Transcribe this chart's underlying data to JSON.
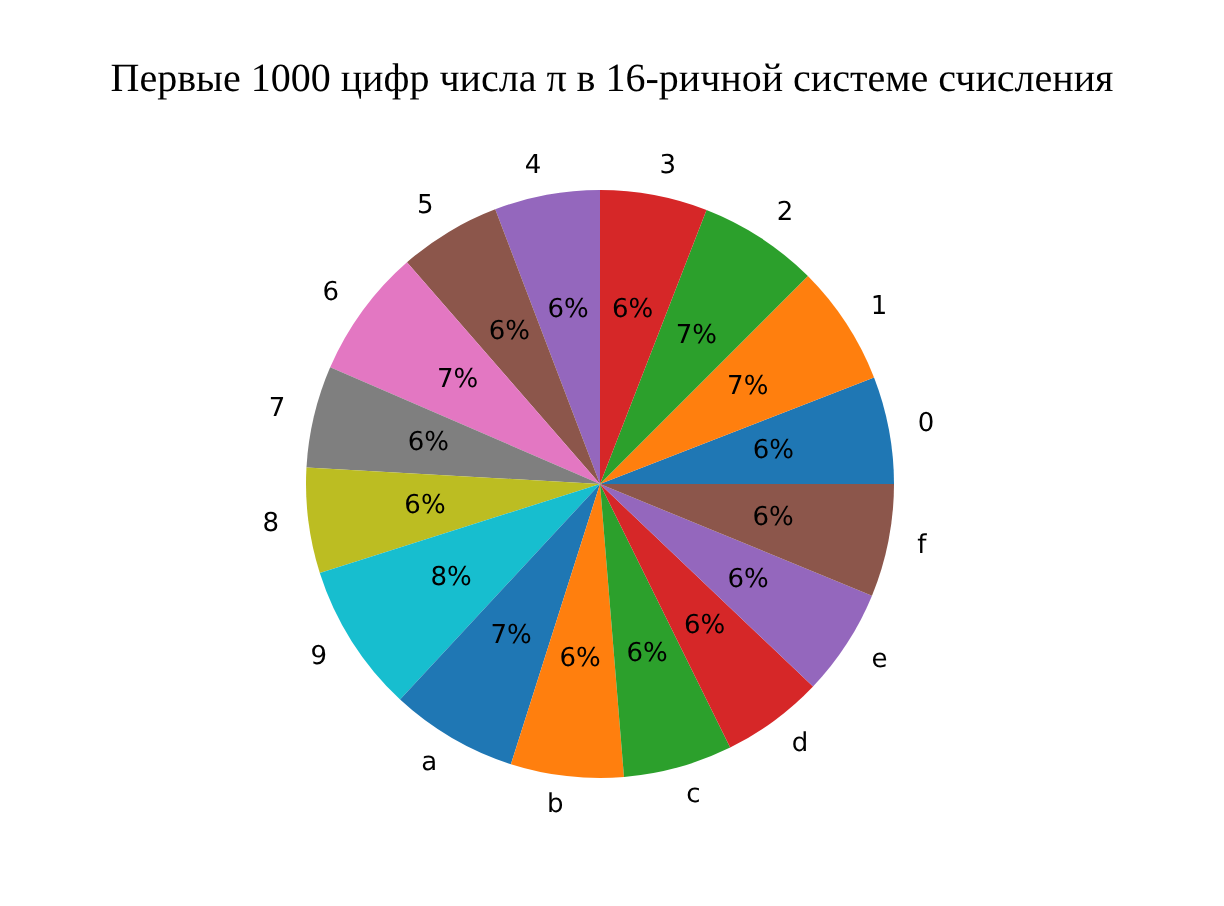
{
  "chart_data": {
    "type": "pie",
    "title": "Первые 1000 цифр числа π в 16-ричной системе счисления",
    "categories": [
      "0",
      "1",
      "2",
      "3",
      "4",
      "5",
      "6",
      "7",
      "8",
      "9",
      "a",
      "b",
      "c",
      "d",
      "e",
      "f"
    ],
    "values": [
      5.9,
      6.6,
      6.6,
      5.9,
      5.8,
      5.6,
      7.1,
      5.6,
      5.8,
      8.2,
      7.0,
      6.2,
      6.0,
      5.6,
      5.9,
      6.2
    ],
    "value_labels": [
      "6%",
      "7%",
      "7%",
      "6%",
      "6%",
      "6%",
      "7%",
      "6%",
      "6%",
      "8%",
      "7%",
      "6%",
      "6%",
      "6%",
      "6%",
      "6%"
    ],
    "colors": [
      "#1f77b4",
      "#ff7f0e",
      "#2ca02c",
      "#d62728",
      "#9467bd",
      "#8c564b",
      "#e377c2",
      "#7f7f7f",
      "#bcbd22",
      "#17becf",
      "#1f77b4",
      "#ff7f0e",
      "#2ca02c",
      "#d62728",
      "#9467bd",
      "#8c564b"
    ]
  }
}
